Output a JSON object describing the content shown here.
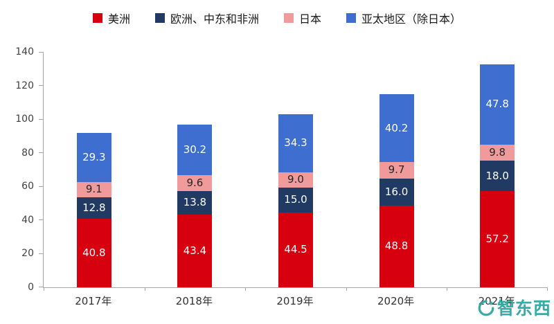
{
  "chart_data": {
    "type": "bar",
    "stacked": true,
    "categories": [
      "2017年",
      "2018年",
      "2019年",
      "2020年",
      "2021年"
    ],
    "series": [
      {
        "name": "美洲",
        "color": "#d7000f",
        "label_color": "#ffffff",
        "values": [
          40.8,
          43.4,
          44.5,
          48.8,
          57.2
        ]
      },
      {
        "name": "欧洲、中东和非洲",
        "color": "#203a64",
        "label_color": "#ffffff",
        "values": [
          12.8,
          13.8,
          15.0,
          16.0,
          18.0
        ]
      },
      {
        "name": "日本",
        "color": "#f09a9b",
        "label_color": "#262626",
        "values": [
          9.1,
          9.6,
          9.0,
          9.7,
          9.8
        ]
      },
      {
        "name": "亚太地区（除日本）",
        "color": "#3d6ed0",
        "label_color": "#ffffff",
        "values": [
          29.3,
          30.2,
          34.3,
          40.2,
          47.8
        ]
      }
    ],
    "ylim": [
      0,
      140
    ],
    "yticks": [
      0,
      20,
      40,
      60,
      80,
      100,
      120,
      140
    ],
    "grid": false,
    "legend_position": "top",
    "value_label_format": "0.0"
  },
  "watermark": {
    "text": "智东西",
    "color": "#2ba8a1"
  }
}
